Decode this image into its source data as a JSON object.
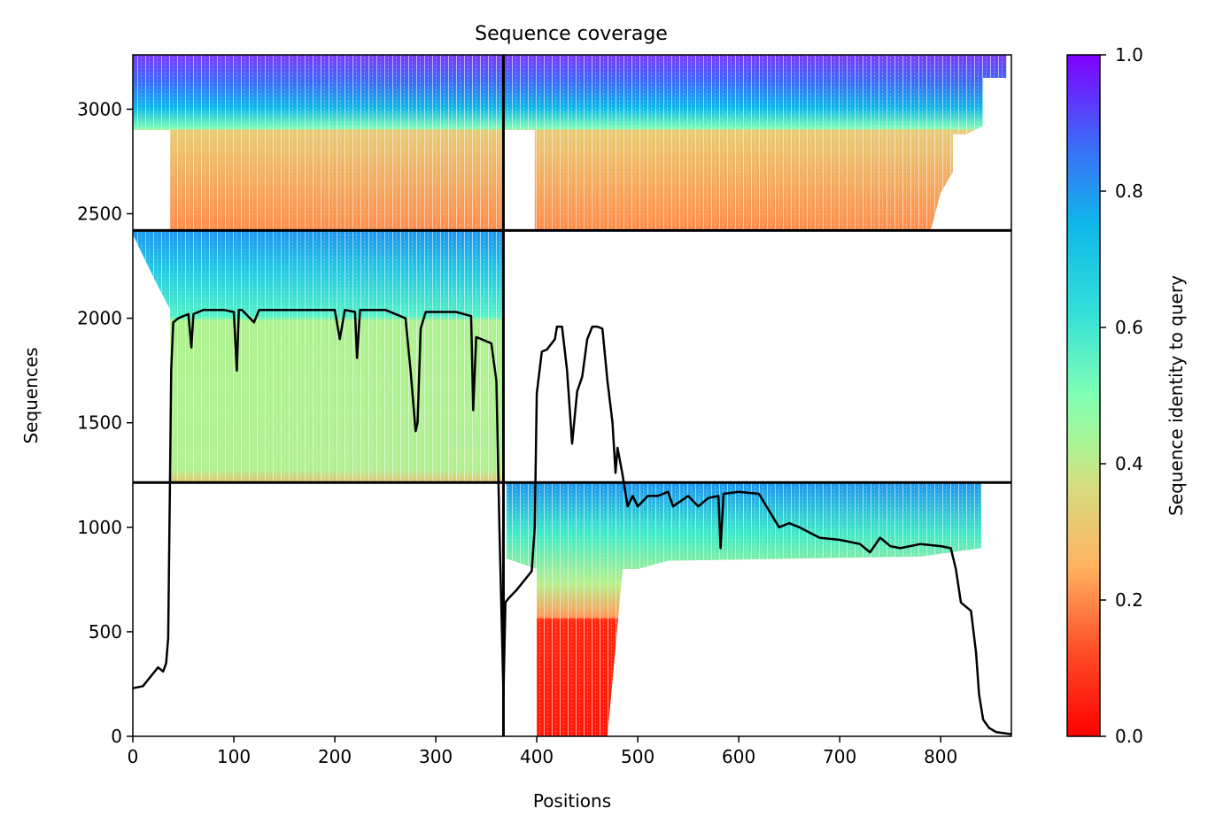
{
  "chart_data": {
    "type": "heatmap",
    "title": "Sequence coverage",
    "xlabel": "Positions",
    "ylabel": "Sequences",
    "xlim": [
      0,
      870
    ],
    "ylim": [
      0,
      3260
    ],
    "x_ticks": [
      0,
      100,
      200,
      300,
      400,
      500,
      600,
      700,
      800
    ],
    "y_ticks": [
      0,
      500,
      1000,
      1500,
      2000,
      2500,
      3000
    ],
    "colorbar": {
      "label": "Sequence identity to query",
      "range": [
        0,
        1
      ],
      "ticks": [
        "0.0",
        "0.2",
        "0.4",
        "0.6",
        "0.8",
        "1.0"
      ],
      "colormap": "rainbow_r"
    },
    "domain_boundaries": {
      "x": [
        367
      ],
      "y": [
        1214,
        2420
      ]
    },
    "blocks": [
      {
        "name": "block-upper-left",
        "x": [
          0,
          367
        ],
        "y": [
          2420,
          3260
        ],
        "identity_top": 1.0,
        "identity_bottom": 0.2
      },
      {
        "name": "block-upper-right",
        "x": [
          367,
          870
        ],
        "y": [
          2420,
          3260
        ],
        "identity_top": 1.0,
        "identity_bottom": 0.2
      },
      {
        "name": "block-middle-left",
        "x": [
          0,
          367
        ],
        "y": [
          1214,
          2420
        ],
        "identity_top": 0.85,
        "identity_bottom": 0.38
      },
      {
        "name": "block-lower-right",
        "x": [
          367,
          870
        ],
        "y": [
          0,
          1214
        ],
        "identity_top": 0.9,
        "identity_bottom": 0.05
      }
    ],
    "coverage_line": {
      "name": "coverage",
      "x": [
        0,
        10,
        20,
        25,
        30,
        33,
        35,
        37,
        38,
        40,
        45,
        50,
        55,
        58,
        60,
        70,
        80,
        90,
        100,
        103,
        105,
        108,
        110,
        120,
        125,
        130,
        140,
        150,
        175,
        200,
        205,
        210,
        220,
        222,
        225,
        230,
        250,
        270,
        275,
        280,
        282,
        285,
        290,
        300,
        320,
        335,
        337,
        340,
        345,
        355,
        360,
        363,
        365,
        367,
        369,
        372,
        380,
        395,
        398,
        400,
        405,
        410,
        418,
        420,
        425,
        430,
        435,
        440,
        445,
        450,
        455,
        460,
        465,
        470,
        475,
        478,
        480,
        485,
        490,
        495,
        500,
        510,
        520,
        530,
        535,
        550,
        560,
        570,
        580,
        582,
        585,
        600,
        620,
        630,
        640,
        650,
        660,
        680,
        700,
        720,
        730,
        740,
        750,
        760,
        780,
        800,
        810,
        815,
        820,
        830,
        835,
        838,
        842,
        848,
        855,
        870
      ],
      "y": [
        230,
        240,
        300,
        330,
        310,
        350,
        470,
        1320,
        1750,
        1980,
        2000,
        2010,
        2020,
        1860,
        2020,
        2040,
        2040,
        2040,
        2030,
        1750,
        2040,
        2040,
        2030,
        1980,
        2040,
        2040,
        2040,
        2040,
        2040,
        2040,
        1900,
        2040,
        2030,
        1810,
        2040,
        2040,
        2040,
        2000,
        1750,
        1460,
        1500,
        1950,
        2030,
        2030,
        2030,
        2010,
        1560,
        1910,
        1900,
        1880,
        1700,
        1000,
        600,
        200,
        640,
        660,
        700,
        790,
        1000,
        1640,
        1840,
        1850,
        1900,
        1960,
        1960,
        1750,
        1400,
        1650,
        1720,
        1900,
        1960,
        1960,
        1950,
        1700,
        1500,
        1260,
        1380,
        1250,
        1100,
        1150,
        1100,
        1150,
        1150,
        1170,
        1100,
        1150,
        1100,
        1140,
        1150,
        900,
        1160,
        1170,
        1160,
        1080,
        1000,
        1020,
        1000,
        950,
        940,
        920,
        880,
        950,
        910,
        900,
        920,
        910,
        900,
        800,
        640,
        600,
        400,
        200,
        80,
        40,
        20,
        10
      ]
    }
  }
}
